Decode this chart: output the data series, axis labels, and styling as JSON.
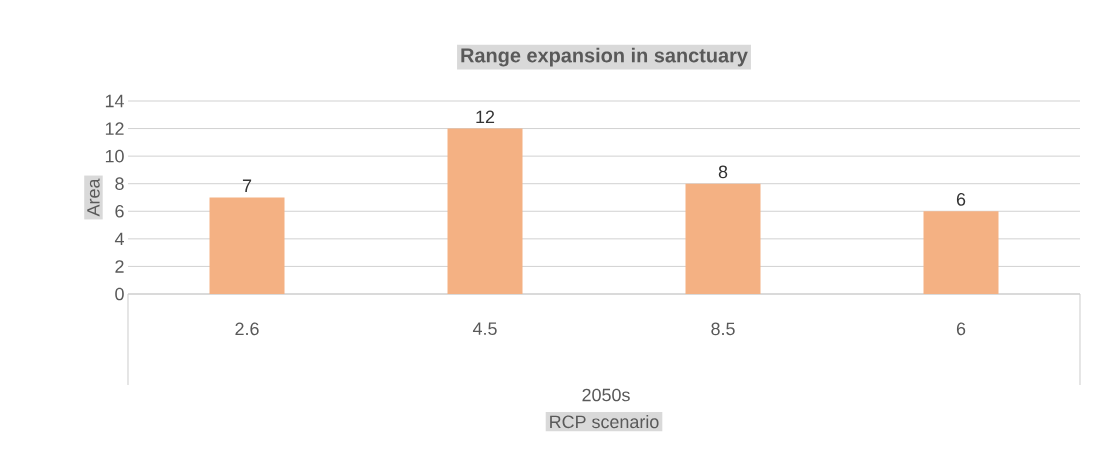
{
  "chart_data": {
    "type": "bar",
    "title": "Range expansion in sanctuary",
    "xlabel": "RCP scenario",
    "ylabel": "Area",
    "categories": [
      "2.6",
      "4.5",
      "8.5",
      "6"
    ],
    "values": [
      7,
      12,
      8,
      6
    ],
    "color": "#f4b183",
    "ylim": [
      0,
      14
    ],
    "yticks": [
      0,
      2,
      4,
      6,
      8,
      10,
      12,
      14
    ],
    "grid": "y",
    "data_labels": true,
    "annotations": [
      "2050s"
    ]
  }
}
